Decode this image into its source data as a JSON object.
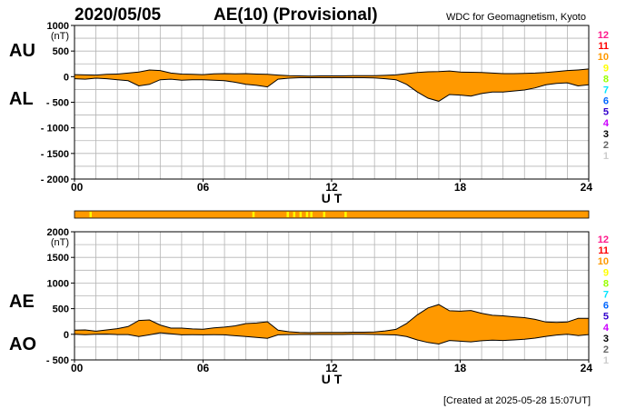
{
  "header": {
    "date": "2020/05/05",
    "title": "AE(10) (Provisional)",
    "source": "WDC for Geomagnetism, Kyoto"
  },
  "footer": {
    "created": "[Created at 2025-05-28 15:07UT]"
  },
  "colors": {
    "fill": "#ff9900",
    "outline": "#000000",
    "grid": "#b4b4b4",
    "count_bar_base": "#ff9900",
    "count_bar_marks": "#ffff00"
  },
  "station_count_legend": [
    {
      "label": "12",
      "color": "#ff1a8c"
    },
    {
      "label": "11",
      "color": "#ff0000"
    },
    {
      "label": "10",
      "color": "#ff9900"
    },
    {
      "label": "9",
      "color": "#ffff00"
    },
    {
      "label": "8",
      "color": "#99ff00"
    },
    {
      "label": "7",
      "color": "#00e5ff"
    },
    {
      "label": "6",
      "color": "#0066ff"
    },
    {
      "label": "5",
      "color": "#3300cc"
    },
    {
      "label": "4",
      "color": "#cc00ff"
    },
    {
      "label": "3",
      "color": "#000000"
    },
    {
      "label": "2",
      "color": "#666666"
    },
    {
      "label": "1",
      "color": "#cccccc"
    }
  ],
  "count_bar": {
    "yellow_marks_ut_hours": [
      0.7,
      8.3,
      9.9,
      10.2,
      10.5,
      10.8,
      11.0,
      11.6,
      12.6
    ]
  },
  "chart_data": [
    {
      "type": "area",
      "series_labels": [
        "AU",
        "AL"
      ],
      "xlabel": "U T",
      "ylabel": "(nT)",
      "xlim": [
        0,
        24
      ],
      "ylim": [
        -2000,
        1000
      ],
      "xticks": [
        "00",
        "06",
        "12",
        "18",
        "24"
      ],
      "yticks": [
        "1000",
        "500",
        "0",
        "- 500",
        "- 1000",
        "- 1500",
        "- 2000"
      ],
      "grid": true,
      "x": [
        0,
        0.5,
        1,
        1.5,
        2,
        2.5,
        3,
        3.5,
        4,
        4.5,
        5,
        5.5,
        6,
        6.5,
        7,
        7.5,
        8,
        8.5,
        9,
        9.5,
        10,
        10.5,
        11,
        11.5,
        12,
        12.5,
        13,
        13.5,
        14,
        14.5,
        15,
        15.5,
        16,
        16.5,
        17,
        17.5,
        18,
        18.5,
        19,
        19.5,
        20,
        20.5,
        21,
        21.5,
        22,
        22.5,
        23,
        23.5,
        24
      ],
      "series": [
        {
          "name": "AU",
          "values": [
            40,
            35,
            30,
            45,
            50,
            70,
            90,
            130,
            120,
            70,
            50,
            45,
            40,
            55,
            60,
            55,
            60,
            50,
            45,
            30,
            20,
            15,
            12,
            15,
            15,
            15,
            20,
            20,
            20,
            25,
            35,
            60,
            80,
            95,
            100,
            110,
            90,
            85,
            80,
            70,
            60,
            60,
            65,
            70,
            80,
            100,
            120,
            130,
            150
          ]
        },
        {
          "name": "AL",
          "values": [
            -40,
            -50,
            -30,
            -40,
            -60,
            -80,
            -180,
            -150,
            -60,
            -50,
            -70,
            -60,
            -60,
            -70,
            -80,
            -110,
            -150,
            -170,
            -200,
            -50,
            -30,
            -20,
            -20,
            -20,
            -20,
            -20,
            -20,
            -20,
            -25,
            -40,
            -60,
            -150,
            -300,
            -420,
            -480,
            -350,
            -360,
            -380,
            -330,
            -300,
            -300,
            -280,
            -260,
            -220,
            -160,
            -130,
            -120,
            -180,
            -160
          ]
        }
      ]
    },
    {
      "type": "area",
      "series_labels": [
        "AE",
        "AO"
      ],
      "xlabel": "U T",
      "ylabel": "(nT)",
      "xlim": [
        0,
        24
      ],
      "ylim": [
        -500,
        2000
      ],
      "xticks": [
        "00",
        "06",
        "12",
        "18",
        "24"
      ],
      "yticks": [
        "2000",
        "1500",
        "1000",
        "500",
        "0",
        "- 500"
      ],
      "grid": true,
      "x": [
        0,
        0.5,
        1,
        1.5,
        2,
        2.5,
        3,
        3.5,
        4,
        4.5,
        5,
        5.5,
        6,
        6.5,
        7,
        7.5,
        8,
        8.5,
        9,
        9.5,
        10,
        10.5,
        11,
        11.5,
        12,
        12.5,
        13,
        13.5,
        14,
        14.5,
        15,
        15.5,
        16,
        16.5,
        17,
        17.5,
        18,
        18.5,
        19,
        19.5,
        20,
        20.5,
        21,
        21.5,
        22,
        22.5,
        23,
        23.5,
        24
      ],
      "series": [
        {
          "name": "AE",
          "values": [
            80,
            85,
            60,
            85,
            110,
            150,
            270,
            280,
            180,
            120,
            120,
            105,
            100,
            125,
            140,
            165,
            210,
            220,
            245,
            80,
            50,
            35,
            32,
            35,
            35,
            35,
            40,
            40,
            45,
            65,
            95,
            210,
            380,
            515,
            580,
            460,
            450,
            465,
            410,
            370,
            360,
            340,
            325,
            290,
            240,
            230,
            240,
            310,
            310
          ]
        },
        {
          "name": "AO",
          "values": [
            0,
            -8,
            0,
            3,
            -5,
            -5,
            -45,
            -10,
            30,
            10,
            -10,
            -8,
            -10,
            -8,
            -10,
            -28,
            -45,
            -60,
            -78,
            -10,
            -5,
            -3,
            -4,
            -3,
            -3,
            -3,
            0,
            0,
            -3,
            -8,
            -12,
            -45,
            -110,
            -160,
            -190,
            -120,
            -135,
            -148,
            -125,
            -115,
            -120,
            -110,
            -98,
            -75,
            -40,
            -15,
            0,
            -25,
            -5
          ]
        }
      ]
    }
  ]
}
